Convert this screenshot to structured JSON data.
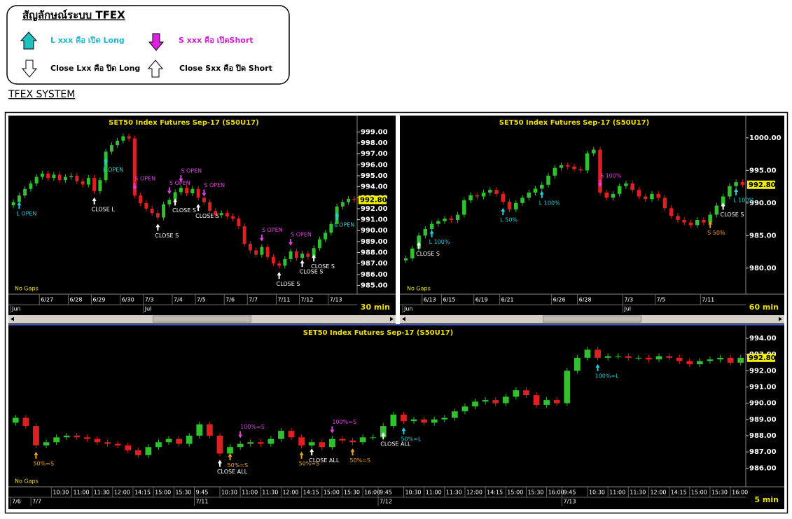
{
  "legend": {
    "title": "สัญลักษณ์ระบบ TFEX",
    "items": [
      "L xxx คือ เปิด Long",
      "S xxx คือ เปิดShort",
      "Close Lxx คือ ปิด Long",
      "Close Sxx คือ ปิด Short"
    ]
  },
  "system_title": "TFEX SYSTEM",
  "chart_data": [
    {
      "type": "candlestick",
      "title": "SET50  Index  Futures  Sep-17  (S50U17)",
      "note": "No Gaps",
      "timeframe": "30  min",
      "ylim": [
        984.2,
        1000.3
      ],
      "yticks": [
        {
          "value": 985,
          "label": "985.00"
        },
        {
          "value": 986,
          "label": "986.00"
        },
        {
          "value": 987,
          "label": "987.00"
        },
        {
          "value": 988,
          "label": "988.00"
        },
        {
          "value": 989,
          "label": "989.00"
        },
        {
          "value": 990,
          "label": "990.00"
        },
        {
          "value": 991,
          "label": "991.00"
        },
        {
          "value": 992,
          "label": "992.00"
        },
        {
          "value": 993,
          "label": "993.00"
        },
        {
          "value": 994,
          "label": "994.00"
        },
        {
          "value": 995,
          "label": "995.00"
        },
        {
          "value": 996,
          "label": "996.00"
        },
        {
          "value": 997,
          "label": "997.00"
        },
        {
          "value": 998,
          "label": "998.00"
        },
        {
          "value": 999,
          "label": "999.00"
        }
      ],
      "last": {
        "value": 992.8,
        "label": "992.80"
      },
      "closes": [
        992.6,
        993.2,
        993.8,
        994.3,
        994.9,
        995.2,
        994.8,
        995.1,
        994.6,
        994.9,
        995.0,
        994.5,
        994.2,
        994.8,
        993.6,
        994.6,
        997.2,
        997.8,
        998.2,
        998.6,
        998.4,
        993.2,
        992.5,
        992.0,
        991.6,
        991.2,
        992.4,
        992.8,
        993.5,
        993.9,
        993.4,
        993.8,
        993.0,
        992.6,
        991.8,
        991.4,
        991.6,
        991.3,
        991.1,
        990.4,
        988.8,
        988.2,
        987.8,
        988.5,
        987.6,
        987.0,
        986.8,
        987.4,
        988.1,
        987.5,
        987.9,
        987.6,
        988.4,
        989.2,
        989.8,
        990.6,
        992.2,
        992.6,
        992.9,
        992.8
      ],
      "xticks": [
        {
          "value": 5,
          "label": "6/27"
        },
        {
          "value": 10,
          "label": "6/28"
        },
        {
          "value": 14,
          "label": "6/29"
        },
        {
          "value": 19,
          "label": "6/30"
        },
        {
          "value": 23,
          "label": "7/3"
        },
        {
          "value": 28,
          "label": "7/4"
        },
        {
          "value": 32,
          "label": "7/5"
        },
        {
          "value": 37,
          "label": "7/6"
        },
        {
          "value": 41,
          "label": "7/7"
        },
        {
          "value": 46,
          "label": "7/11"
        },
        {
          "value": 50,
          "label": "7/12"
        },
        {
          "value": 55,
          "label": "7/13"
        }
      ],
      "periods": [
        {
          "value": 0,
          "label": "Jun"
        },
        {
          "value": 23,
          "label": "Jul"
        }
      ],
      "annotations": [
        {
          "text": "L OPEN",
          "index": 1,
          "kind": "open-long"
        },
        {
          "text": "CLOSE L",
          "index": 14,
          "kind": "close-long"
        },
        {
          "text": "L OPEN",
          "index": 16,
          "kind": "open-long"
        },
        {
          "text": "S OPEN",
          "index": 21,
          "kind": "open-short"
        },
        {
          "text": "CLOSE S",
          "index": 25,
          "kind": "close-short"
        },
        {
          "text": "S OPEN",
          "index": 27,
          "kind": "open-short"
        },
        {
          "text": "CLOSE S",
          "index": 28,
          "kind": "close-short"
        },
        {
          "text": "S OPEN",
          "index": 29,
          "kind": "open-short"
        },
        {
          "text": "CLOSE S",
          "index": 32,
          "kind": "close-short"
        },
        {
          "text": "S OPEN",
          "index": 33,
          "kind": "open-short"
        },
        {
          "text": "S OPEN",
          "index": 43,
          "kind": "open-short"
        },
        {
          "text": "CLOSE S",
          "index": 46,
          "kind": "close-short"
        },
        {
          "text": "S OPEN",
          "index": 48,
          "kind": "open-short"
        },
        {
          "text": "CLOSE S",
          "index": 50,
          "kind": "close-short"
        },
        {
          "text": "CLOSE S",
          "index": 52,
          "kind": "close-short"
        },
        {
          "text": "L OPEN",
          "index": 56,
          "kind": "open-long"
        }
      ]
    },
    {
      "type": "candlestick",
      "title": "SET50  Index  Futures  Sep-17  (S50U17)",
      "note": "No Gaps",
      "timeframe": "60  min",
      "ylim": [
        976,
        1003.1
      ],
      "yticks": [
        {
          "value": 980,
          "label": "980.00"
        },
        {
          "value": 985,
          "label": "985.00"
        },
        {
          "value": 990,
          "label": "990.00"
        },
        {
          "value": 995,
          "label": "995.00"
        },
        {
          "value": 1000,
          "label": "1000.00"
        }
      ],
      "last": {
        "value": 992.8,
        "label": "992.80"
      },
      "closes": [
        981.5,
        983,
        985,
        986,
        986.8,
        987.2,
        987.6,
        987.4,
        988.2,
        990.4,
        991.2,
        991.0,
        991.6,
        992.0,
        991.4,
        990.2,
        989.0,
        990.0,
        990.8,
        991.6,
        992.2,
        992.8,
        994.2,
        995.4,
        995.8,
        995.6,
        995.2,
        995.0,
        997.6,
        998.2,
        991.6,
        990.8,
        991.4,
        992.6,
        993.0,
        992.0,
        991.0,
        990.6,
        991.4,
        990.8,
        989.2,
        988.0,
        987.4,
        987.0,
        986.6,
        987.4,
        987.0,
        988.2,
        989.6,
        991.0,
        992.6,
        993.2,
        992.8
      ],
      "xticks": [
        {
          "value": 3,
          "label": "6/13"
        },
        {
          "value": 6,
          "label": "6/15"
        },
        {
          "value": 11,
          "label": "6/19"
        },
        {
          "value": 15,
          "label": "6/21"
        },
        {
          "value": 23,
          "label": "6/26"
        },
        {
          "value": 27,
          "label": "6/28"
        },
        {
          "value": 34,
          "label": "7/3"
        },
        {
          "value": 39,
          "label": "7/5"
        },
        {
          "value": 46,
          "label": "7/11"
        }
      ],
      "periods": [
        {
          "value": 0,
          "label": "Jun"
        },
        {
          "value": 34,
          "label": "Jul"
        }
      ],
      "annotations": [
        {
          "text": "CLOSE S",
          "index": 2,
          "kind": "close-short"
        },
        {
          "text": "L 100%",
          "index": 4,
          "kind": "open-long"
        },
        {
          "text": "L 50%",
          "index": 15,
          "kind": "open-long"
        },
        {
          "text": "L 100%",
          "index": 21,
          "kind": "open-long"
        },
        {
          "text": "S 100%",
          "index": 30,
          "kind": "open-short"
        },
        {
          "text": "S 50%",
          "index": 47,
          "kind": "half"
        },
        {
          "text": "CLOSE S",
          "index": 49,
          "kind": "close-short"
        },
        {
          "text": "L 100%",
          "index": 51,
          "kind": "open-long"
        }
      ]
    },
    {
      "type": "candlestick",
      "title": "SET50  Index  Futures  Sep-17  (S50U17)",
      "note": "No Gaps",
      "timeframe": "5  min",
      "ylim": [
        984.85,
        994.65
      ],
      "yticks": [
        {
          "value": 986,
          "label": "986.00"
        },
        {
          "value": 987,
          "label": "987.00"
        },
        {
          "value": 988,
          "label": "988.00"
        },
        {
          "value": 989,
          "label": "989.00"
        },
        {
          "value": 990,
          "label": "990.00"
        },
        {
          "value": 991,
          "label": "991.00"
        },
        {
          "value": 992,
          "label": "992.00"
        },
        {
          "value": 993,
          "label": "993.00"
        },
        {
          "value": 994,
          "label": "994.00"
        }
      ],
      "last": {
        "value": 992.8,
        "label": "992.80"
      },
      "closes": [
        989.1,
        988.6,
        987.4,
        987.6,
        987.9,
        988.0,
        987.9,
        987.8,
        987.6,
        987.5,
        987.4,
        987.1,
        986.8,
        987.3,
        987.6,
        987.8,
        987.5,
        988.0,
        988.7,
        988.0,
        986.9,
        987.3,
        987.5,
        987.6,
        987.5,
        987.8,
        988.3,
        987.9,
        987.4,
        987.6,
        987.3,
        987.8,
        987.7,
        987.6,
        987.9,
        987.9,
        988.6,
        989.3,
        988.9,
        989.0,
        988.8,
        989.0,
        989.1,
        989.5,
        989.8,
        990.1,
        990.2,
        990.0,
        990.4,
        990.8,
        990.5,
        989.9,
        990.2,
        990.0,
        992.0,
        992.8,
        993.3,
        992.8,
        992.9,
        992.9,
        992.8,
        992.8,
        992.7,
        992.9,
        992.8,
        992.6,
        992.4,
        992.6,
        992.7,
        992.8,
        992.5,
        992.8
      ],
      "xticks": [
        {
          "value": 4,
          "label": "10:30"
        },
        {
          "value": 6,
          "label": "11:00"
        },
        {
          "value": 8,
          "label": "11:30"
        },
        {
          "value": 10,
          "label": "12:00"
        },
        {
          "value": 12,
          "label": "14:15"
        },
        {
          "value": 14,
          "label": "15:00"
        },
        {
          "value": 16,
          "label": "15:30"
        },
        {
          "value": 18,
          "label": "9:45"
        },
        {
          "value": 20.5,
          "label": "10:30"
        },
        {
          "value": 22.5,
          "label": "11:00"
        },
        {
          "value": 24.5,
          "label": "11:30"
        },
        {
          "value": 26.5,
          "label": "12:00"
        },
        {
          "value": 28.5,
          "label": "14:15"
        },
        {
          "value": 30.5,
          "label": "15:00"
        },
        {
          "value": 32.5,
          "label": "15:30"
        },
        {
          "value": 34.5,
          "label": "16:00"
        },
        {
          "value": 36,
          "label": "9:45"
        },
        {
          "value": 38.5,
          "label": "10:30"
        },
        {
          "value": 40.5,
          "label": "11:00"
        },
        {
          "value": 42.5,
          "label": "11:30"
        },
        {
          "value": 44.5,
          "label": "12:00"
        },
        {
          "value": 46.5,
          "label": "14:15"
        },
        {
          "value": 48.5,
          "label": "15:00"
        },
        {
          "value": 50.5,
          "label": "15:30"
        },
        {
          "value": 52.5,
          "label": "16:00"
        },
        {
          "value": 54,
          "label": "9:45"
        },
        {
          "value": 56.5,
          "label": "10:30"
        },
        {
          "value": 58.5,
          "label": "11:00"
        },
        {
          "value": 60.5,
          "label": "11:30"
        },
        {
          "value": 62.5,
          "label": "12:00"
        },
        {
          "value": 64.5,
          "label": "14:15"
        },
        {
          "value": 66.5,
          "label": "15:00"
        },
        {
          "value": 68.5,
          "label": "15:30"
        },
        {
          "value": 70.5,
          "label": "16:00"
        }
      ],
      "periods": [
        {
          "value": 0,
          "label": "7/6"
        },
        {
          "value": 2,
          "label": "7/7"
        },
        {
          "value": 18,
          "label": "7/11"
        },
        {
          "value": 36,
          "label": "7/12"
        },
        {
          "value": 54,
          "label": "7/13"
        }
      ],
      "annotations": [
        {
          "text": "50%=S",
          "index": 2,
          "kind": "half"
        },
        {
          "text": "CLOSE ALL",
          "index": 20,
          "kind": "close-short"
        },
        {
          "text": "50%=S",
          "index": 21,
          "kind": "half"
        },
        {
          "text": "100%=S",
          "index": 22,
          "kind": "open-short"
        },
        {
          "text": "50%=S",
          "index": 28,
          "kind": "half"
        },
        {
          "text": "CLOSE ALL",
          "index": 29,
          "kind": "close-short"
        },
        {
          "text": "100%=S",
          "index": 31,
          "kind": "open-short"
        },
        {
          "text": "50%=S",
          "index": 33,
          "kind": "half"
        },
        {
          "text": "CLOSE ALL",
          "index": 36,
          "kind": "close-short"
        },
        {
          "text": "50%=L",
          "index": 38,
          "kind": "open-long"
        },
        {
          "text": "100%=L",
          "index": 57,
          "kind": "open-long"
        }
      ]
    }
  ]
}
